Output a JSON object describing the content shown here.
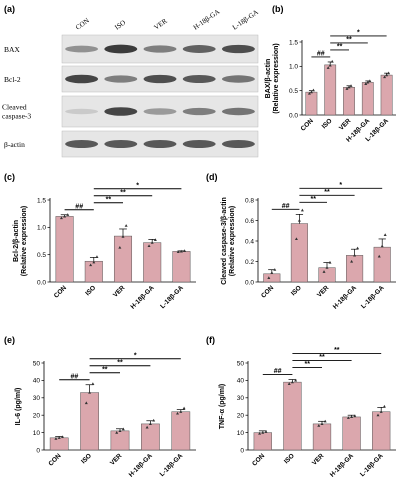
{
  "blot": {
    "letter": "(a)",
    "columns": [
      "CON",
      "ISO",
      "VER",
      "H-18β-GA",
      "L-18β-GA"
    ],
    "rows": [
      {
        "label": "BAX",
        "intensity": [
          0.45,
          0.9,
          0.55,
          0.7,
          0.8
        ]
      },
      {
        "label": "Bcl-2",
        "intensity": [
          0.85,
          0.55,
          0.8,
          0.75,
          0.6
        ]
      },
      {
        "label": "Cleaved caspase-3",
        "intensity": [
          0.15,
          0.85,
          0.4,
          0.55,
          0.6
        ]
      },
      {
        "label": "β-actin",
        "intensity": [
          0.75,
          0.75,
          0.75,
          0.75,
          0.75
        ]
      }
    ]
  },
  "colors": {
    "bar": "#dba7ad",
    "bar_stroke": "#555555",
    "point": "#333333"
  },
  "chart_data": [
    {
      "id": "b",
      "letter": "(b)",
      "type": "bar",
      "categories": [
        "CON",
        "ISO",
        "VER",
        "H-18β-GA",
        "L-18β-GA"
      ],
      "values": [
        0.47,
        1.03,
        0.57,
        0.67,
        0.82
      ],
      "errors": [
        0.03,
        0.06,
        0.03,
        0.03,
        0.04
      ],
      "points": [
        [
          0.44,
          0.47,
          0.51
        ],
        [
          0.97,
          1.02,
          1.1
        ],
        [
          0.54,
          0.57,
          0.6
        ],
        [
          0.64,
          0.67,
          0.7
        ],
        [
          0.78,
          0.82,
          0.86
        ]
      ],
      "ylabel": [
        "BAX/β-actin",
        "(Relative expression)"
      ],
      "ylim": [
        0,
        1.5
      ],
      "yticks": [
        "0.0",
        "0.5",
        "1.0",
        "1.5"
      ],
      "comparisons": [
        {
          "from": 0,
          "to": 1,
          "label": "##"
        },
        {
          "from": 1,
          "to": 2,
          "label": "**"
        },
        {
          "from": 1,
          "to": 3,
          "label": "**"
        },
        {
          "from": 1,
          "to": 4,
          "label": "*"
        }
      ]
    },
    {
      "id": "c",
      "letter": "(c)",
      "type": "bar",
      "categories": [
        "CON",
        "ISO",
        "VER",
        "H-18β-GA",
        "L-18β-GA"
      ],
      "values": [
        1.2,
        0.38,
        0.84,
        0.72,
        0.56
      ],
      "errors": [
        0.03,
        0.07,
        0.13,
        0.06,
        0.01
      ],
      "points": [
        [
          1.17,
          1.2,
          1.23
        ],
        [
          0.31,
          0.36,
          0.46
        ],
        [
          0.63,
          0.83,
          1.03
        ],
        [
          0.66,
          0.72,
          0.77
        ],
        [
          0.55,
          0.56,
          0.57
        ]
      ],
      "ylabel": [
        "Bcl-2/β-actin",
        "(Relative expression)"
      ],
      "ylim": [
        0,
        1.5
      ],
      "yticks": [
        "0.0",
        "0.5",
        "1.0",
        "1.5"
      ],
      "comparisons": [
        {
          "from": 0,
          "to": 1,
          "label": "##"
        },
        {
          "from": 1,
          "to": 2,
          "label": "**"
        },
        {
          "from": 1,
          "to": 3,
          "label": "**"
        },
        {
          "from": 1,
          "to": 4,
          "label": "*"
        }
      ]
    },
    {
      "id": "d",
      "letter": "(d)",
      "type": "bar",
      "categories": [
        "CON",
        "ISO",
        "VER",
        "H-18β-GA",
        "L-18β-GA"
      ],
      "values": [
        0.08,
        0.57,
        0.14,
        0.26,
        0.34
      ],
      "errors": [
        0.04,
        0.09,
        0.05,
        0.06,
        0.08
      ],
      "points": [
        [
          0.04,
          0.09,
          0.12
        ],
        [
          0.42,
          0.6,
          0.7
        ],
        [
          0.1,
          0.14,
          0.19
        ],
        [
          0.2,
          0.26,
          0.33
        ],
        [
          0.25,
          0.35,
          0.46
        ]
      ],
      "ylabel": [
        "Cleaved caspase-3/β-actin",
        "(Relative expression)"
      ],
      "ylim": [
        0,
        0.8
      ],
      "yticks": [
        "0.0",
        "0.2",
        "0.4",
        "0.6",
        "0.8"
      ],
      "comparisons": [
        {
          "from": 0,
          "to": 1,
          "label": "##"
        },
        {
          "from": 1,
          "to": 2,
          "label": "**"
        },
        {
          "from": 1,
          "to": 3,
          "label": "**"
        },
        {
          "from": 1,
          "to": 4,
          "label": "*"
        }
      ]
    },
    {
      "id": "e",
      "letter": "(e)",
      "type": "bar",
      "categories": [
        "CON",
        "ISO",
        "VER",
        "H-18β-GA",
        "L-18β-GA"
      ],
      "values": [
        7,
        33,
        11,
        15,
        22
      ],
      "errors": [
        0.8,
        4.5,
        1.2,
        1.8,
        1.2
      ],
      "points": [
        [
          6.5,
          7,
          7.5
        ],
        [
          27,
          33,
          38
        ],
        [
          10,
          11,
          12
        ],
        [
          13,
          15,
          17
        ],
        [
          21,
          22,
          24
        ]
      ],
      "ylabel": [
        "IL-6 (pg/ml)"
      ],
      "ylim": [
        0,
        50
      ],
      "yticks": [
        "0",
        "10",
        "20",
        "30",
        "40",
        "50"
      ],
      "comparisons": [
        {
          "from": 0,
          "to": 1,
          "label": "##"
        },
        {
          "from": 1,
          "to": 2,
          "label": "**"
        },
        {
          "from": 1,
          "to": 3,
          "label": "**"
        },
        {
          "from": 1,
          "to": 4,
          "label": "*"
        }
      ]
    },
    {
      "id": "f",
      "letter": "(f)",
      "type": "bar",
      "categories": [
        "CON",
        "ISO",
        "VER",
        "H-18β-GA",
        "L-18β-GA"
      ],
      "values": [
        10,
        39,
        15,
        19,
        22
      ],
      "errors": [
        1,
        1.5,
        1.5,
        1,
        2.5
      ],
      "points": [
        [
          9.5,
          10,
          10.5
        ],
        [
          38,
          39,
          40
        ],
        [
          14,
          15,
          16.5
        ],
        [
          18.5,
          19,
          19.5
        ],
        [
          20,
          22,
          25
        ]
      ],
      "ylabel": [
        "TNF-α (pg/ml)"
      ],
      "ylim": [
        0,
        50
      ],
      "yticks": [
        "0",
        "10",
        "20",
        "30",
        "40",
        "50"
      ],
      "comparisons": [
        {
          "from": 0,
          "to": 1,
          "label": "##"
        },
        {
          "from": 1,
          "to": 2,
          "label": "**"
        },
        {
          "from": 1,
          "to": 3,
          "label": "**"
        },
        {
          "from": 1,
          "to": 4,
          "label": "**"
        }
      ]
    }
  ]
}
